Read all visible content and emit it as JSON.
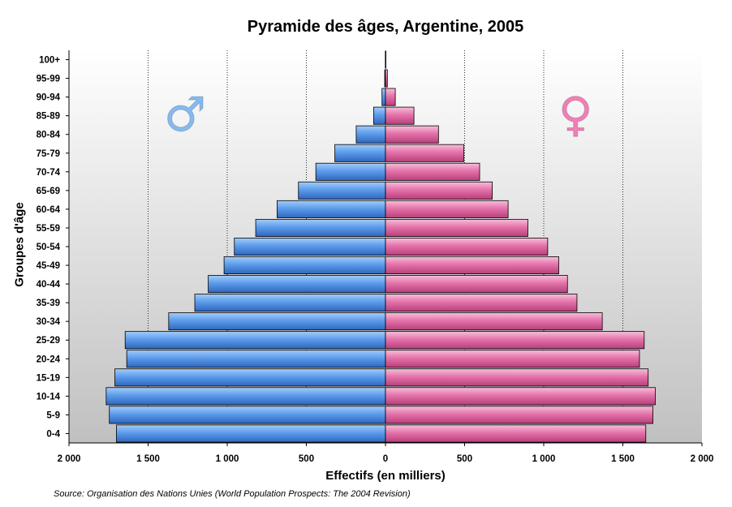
{
  "colors": {
    "male": "#4a90e8",
    "female": "#e1629f",
    "male_symbol": "#86baf0",
    "female_symbol": "#f27fb7"
  },
  "icons": {
    "male": "male-symbol-icon",
    "female": "female-symbol-icon",
    "male_glyph": "♂",
    "female_glyph": "♀"
  },
  "chart_data": {
    "type": "bar",
    "orientation": "horizontal",
    "layout": "population-pyramid",
    "title": "Pyramide des âges, Argentine, 2005",
    "xlabel": "Effectifs (en milliers)",
    "ylabel": "Groupes d'âge",
    "xlim": [
      -2000,
      2000
    ],
    "xticks": [
      -2000,
      -1500,
      -1000,
      -500,
      0,
      500,
      1000,
      1500,
      2000
    ],
    "xtick_labels": [
      "2 000",
      "1 500",
      "1 000",
      "500",
      "0",
      "500",
      "1 000",
      "1 500",
      "2 000"
    ],
    "grid": "vertical dotted lines",
    "categories": [
      "0-4",
      "5-9",
      "10-14",
      "15-19",
      "20-24",
      "25-29",
      "30-34",
      "35-39",
      "40-44",
      "45-49",
      "50-54",
      "55-59",
      "60-64",
      "65-69",
      "70-74",
      "75-79",
      "80-84",
      "85-89",
      "90-94",
      "95-99",
      "100+"
    ],
    "series": [
      {
        "values": [
          1700,
          1745,
          1765,
          1710,
          1635,
          1645,
          1370,
          1205,
          1120,
          1020,
          955,
          820,
          685,
          550,
          440,
          320,
          185,
          75,
          22,
          5,
          1
        ]
      },
      {
        "values": [
          1645,
          1690,
          1705,
          1660,
          1605,
          1635,
          1370,
          1210,
          1150,
          1095,
          1025,
          900,
          775,
          675,
          595,
          495,
          335,
          180,
          62,
          12,
          2
        ]
      }
    ]
  },
  "source": "Source: Organisation des Nations Unies (World Population Prospects: The 2004 Revision)"
}
